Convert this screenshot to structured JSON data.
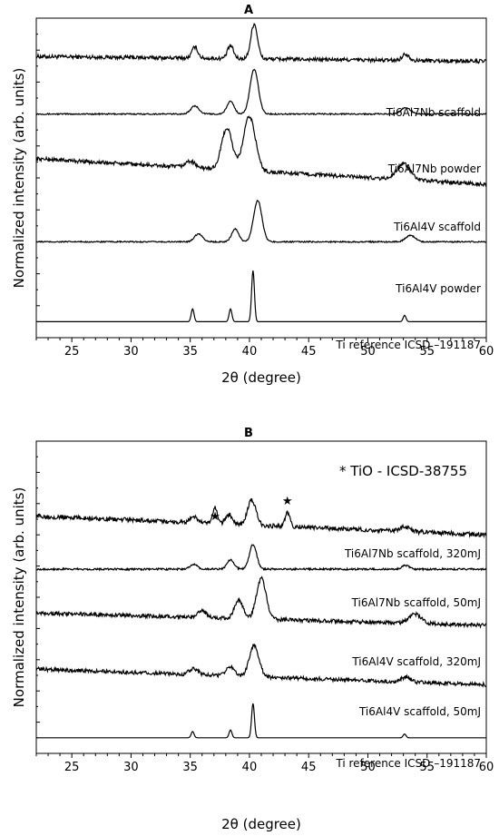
{
  "chart_data": [
    {
      "type": "line",
      "panel": "A",
      "title": "A",
      "xlabel": "2θ (degree)",
      "ylabel": "Normalized intensity (arb. units)",
      "xlim": [
        22,
        60
      ],
      "xticks": [
        25,
        30,
        35,
        40,
        45,
        50,
        55,
        60
      ],
      "yticks_labeled": false,
      "grid": false,
      "legend": null,
      "annotation": "",
      "series": [
        {
          "name": "Ti6Al7Nb scaffold",
          "baseline_level": 0.88,
          "slope": -0.015,
          "noise": 0.006,
          "peaks": [
            [
              35.4,
              0.035,
              0.25
            ],
            [
              38.4,
              0.04,
              0.25
            ],
            [
              40.4,
              0.11,
              0.28
            ],
            [
              53.2,
              0.02,
              0.3
            ]
          ]
        },
        {
          "name": "Ti6Al7Nb powder",
          "baseline_level": 0.7,
          "slope": 0.0,
          "noise": 0.002,
          "peaks": [
            [
              35.4,
              0.025,
              0.35
            ],
            [
              38.4,
              0.04,
              0.3
            ],
            [
              40.4,
              0.14,
              0.35
            ],
            [
              53.2,
              0.02,
              0.4
            ]
          ]
        },
        {
          "name": "Ti6Al4V scaffold",
          "baseline_level": 0.56,
          "slope": -0.08,
          "noise": 0.006,
          "peaks": [
            [
              35.0,
              0.02,
              0.4
            ],
            [
              38.1,
              0.13,
              0.45
            ],
            [
              40.0,
              0.17,
              0.5
            ],
            [
              53.0,
              0.05,
              0.55
            ]
          ]
        },
        {
          "name": "Ti6Al4V powder",
          "baseline_level": 0.3,
          "slope": 0.0,
          "noise": 0.002,
          "peaks": [
            [
              35.7,
              0.025,
              0.35
            ],
            [
              38.8,
              0.04,
              0.3
            ],
            [
              40.7,
              0.13,
              0.35
            ],
            [
              53.6,
              0.02,
              0.4
            ]
          ]
        },
        {
          "name": "Ti reference ICSD –191187",
          "baseline_level": 0.05,
          "slope": 0.0,
          "noise": 0.0,
          "peaks": [
            [
              35.2,
              0.04,
              0.12
            ],
            [
              38.4,
              0.04,
              0.12
            ],
            [
              40.3,
              0.16,
              0.12
            ],
            [
              53.1,
              0.02,
              0.12
            ]
          ]
        }
      ]
    },
    {
      "type": "line",
      "panel": "B",
      "title": "B",
      "xlabel": "2θ (degree)",
      "ylabel": "Normalized intensity (arb. units)",
      "xlim": [
        22,
        60
      ],
      "xticks": [
        25,
        30,
        35,
        40,
        45,
        50,
        55,
        60
      ],
      "yticks_labeled": false,
      "grid": false,
      "legend": null,
      "annotation": "* TiO - ICSD-38755",
      "star_markers_x": [
        37.1,
        43.2
      ],
      "series": [
        {
          "name": "Ti6Al7Nb scaffold, 320mJ",
          "baseline_level": 0.76,
          "slope": -0.06,
          "noise": 0.007,
          "peaks": [
            [
              35.3,
              0.02,
              0.3
            ],
            [
              37.1,
              0.05,
              0.2
            ],
            [
              38.3,
              0.03,
              0.3
            ],
            [
              40.2,
              0.08,
              0.35
            ],
            [
              43.2,
              0.045,
              0.2
            ],
            [
              53.1,
              0.015,
              0.4
            ]
          ]
        },
        {
          "name": "Ti6Al7Nb scaffold, 50mJ",
          "baseline_level": 0.59,
          "slope": 0.0,
          "noise": 0.003,
          "peaks": [
            [
              35.3,
              0.015,
              0.3
            ],
            [
              38.4,
              0.03,
              0.3
            ],
            [
              40.3,
              0.08,
              0.3
            ],
            [
              53.2,
              0.012,
              0.3
            ]
          ]
        },
        {
          "name": "Ti6Al4V scaffold, 320mJ",
          "baseline_level": 0.45,
          "slope": -0.04,
          "noise": 0.006,
          "peaks": [
            [
              36.0,
              0.02,
              0.4
            ],
            [
              39.1,
              0.06,
              0.35
            ],
            [
              41.0,
              0.13,
              0.4
            ],
            [
              54.0,
              0.03,
              0.5
            ]
          ]
        },
        {
          "name": "Ti6Al4V scaffold, 50mJ",
          "baseline_level": 0.27,
          "slope": -0.05,
          "noise": 0.006,
          "peaks": [
            [
              35.3,
              0.02,
              0.35
            ],
            [
              38.4,
              0.03,
              0.35
            ],
            [
              40.4,
              0.1,
              0.4
            ],
            [
              53.2,
              0.015,
              0.4
            ]
          ]
        },
        {
          "name": "Ti reference ICSD –191187",
          "baseline_level": 0.05,
          "slope": 0.0,
          "noise": 0.0,
          "peaks": [
            [
              35.2,
              0.02,
              0.12
            ],
            [
              38.4,
              0.025,
              0.12
            ],
            [
              40.3,
              0.11,
              0.12
            ],
            [
              53.1,
              0.012,
              0.12
            ]
          ]
        }
      ]
    }
  ]
}
